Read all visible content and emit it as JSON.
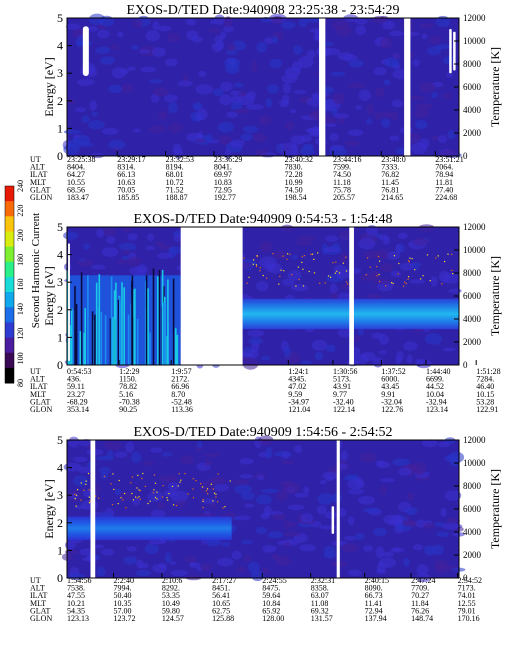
{
  "colorbar": {
    "label": "Second Harmonic Current",
    "ticks": [
      "80",
      "100",
      "120",
      "140",
      "160",
      "180",
      "200",
      "220",
      "240"
    ],
    "colors": [
      "#000000",
      "#3b0a55",
      "#4b1ea0",
      "#2f3cd2",
      "#1c6ee8",
      "#10a8ec",
      "#19dcd8",
      "#2af08a",
      "#7cf030",
      "#d8ec10",
      "#fbc40c",
      "#f96a08",
      "#e81a04"
    ]
  },
  "panels": [
    {
      "title": "EXOS-D/TED  Date:940908  23:25:38 - 23:54:29",
      "ylabel": "Energy [eV]",
      "y2label": "Temperature [K]",
      "yticks": [
        "0",
        "1",
        "2",
        "3",
        "4",
        "5"
      ],
      "y2ticks": [
        "0",
        "2000",
        "4000",
        "6000",
        "8000",
        "10000",
        "12000"
      ],
      "data_gaps": [
        [
          0.643,
          0.659
        ],
        [
          0.86,
          0.876
        ]
      ],
      "spikes": [
        [
          0.975,
          0.6,
          0.92
        ],
        [
          0.985,
          0.62,
          0.9
        ]
      ],
      "band": null,
      "left_bar": [
        0.02,
        0.58,
        0.94
      ],
      "cols": [
        {
          "fraction": 0.0,
          "UT": "23:25:38",
          "ALT": "8404.",
          "ILAT": "64.27",
          "MLT": "10.55",
          "GLAT": "68.56",
          "GLON": "183.47"
        },
        {
          "fraction": 0.135,
          "UT": "23:29:17",
          "ALT": "8314.",
          "ILAT": "66.13",
          "MLT": "10.63",
          "GLAT": "70.05",
          "GLON": "185.85"
        },
        {
          "fraction": 0.265,
          "UT": "23:32:53",
          "ALT": "8194.",
          "ILAT": "68.01",
          "MLT": "10.72",
          "GLAT": "71.52",
          "GLON": "188.87"
        },
        {
          "fraction": 0.395,
          "UT": "23:36:29",
          "ALT": "8041.",
          "ILAT": "69.97",
          "MLT": "10.83",
          "GLAT": "72.95",
          "GLON": "192.77"
        },
        {
          "fraction": 0.585,
          "UT": "23:40:32",
          "ALT": "7830.",
          "ILAT": "72.28",
          "MLT": "10.99",
          "GLAT": "74.50",
          "GLON": "198.54"
        },
        {
          "fraction": 0.715,
          "UT": "23:44:16",
          "ALT": "7599.",
          "ILAT": "74.50",
          "MLT": "11.18",
          "GLAT": "75.78",
          "GLON": "205.57"
        },
        {
          "fraction": 0.845,
          "UT": "23:48:0",
          "ALT": "7333.",
          "ILAT": "76.82",
          "MLT": "11.45",
          "GLAT": "76.81",
          "GLON": "214.65"
        },
        {
          "fraction": 0.99,
          "UT": "23:51:21",
          "ALT": "7064.",
          "ILAT": "78.94",
          "MLT": "11.81",
          "GLAT": "77.40",
          "GLON": "224.68"
        }
      ]
    },
    {
      "title": "EXOS-D/TED   Date:940909   0:54:53 - 1:54:48",
      "ylabel": "Energy [eV]",
      "y2label": "Temperature [K]",
      "yticks": [
        "0",
        "1",
        "2",
        "3",
        "4",
        "5"
      ],
      "y2ticks": [
        "0",
        "2000",
        "4000",
        "6000",
        "8000",
        "10000",
        "12000"
      ],
      "data_gaps": [
        [
          0.29,
          0.448
        ],
        [
          0.72,
          0.732
        ]
      ],
      "spikes": [],
      "band": {
        "from": 0.448,
        "to": 1.0,
        "center": 0.37,
        "height": 0.22
      },
      "left_bar": null,
      "cols": [
        {
          "fraction": 0.0,
          "UT": "0:54:53",
          "ALT": "436.",
          "ILAT": "59.11",
          "MLT": "23.27",
          "GLAT": "-68.29",
          "GLON": "353.14"
        },
        {
          "fraction": 0.14,
          "UT": "1:2:29",
          "ALT": "1150.",
          "ILAT": "78.82",
          "MLT": "5.16",
          "GLAT": "-70.38",
          "GLON": "90.25"
        },
        {
          "fraction": 0.28,
          "UT": "1:9:57",
          "ALT": "2172.",
          "ILAT": "66.96",
          "MLT": "8.70",
          "GLAT": "-52.48",
          "GLON": "113.36"
        },
        {
          "fraction": 0.595,
          "UT": "1:24:1",
          "ALT": "4345.",
          "ILAT": "47.02",
          "MLT": "9.59",
          "GLAT": "-34.97",
          "GLON": "121.04"
        },
        {
          "fraction": 0.715,
          "UT": "1:30:56",
          "ALT": "5173.",
          "ILAT": "43.91",
          "MLT": "9.77",
          "GLAT": "-32.40",
          "GLON": "122.14"
        },
        {
          "fraction": 0.845,
          "UT": "1:37:52",
          "ALT": "6000.",
          "ILAT": "43.45",
          "MLT": "9.91",
          "GLAT": "-32.04",
          "GLON": "122.76"
        },
        {
          "fraction": 0.965,
          "UT": "1:44:40",
          "ALT": "6699.",
          "ILAT": "44.52",
          "MLT": "10.04",
          "GLAT": "-32.94",
          "GLON": "123.14"
        },
        {
          "fraction": 1.1,
          "UT": "1:51:28",
          "ALT": "7284.",
          "ILAT": "46.40",
          "MLT": "10.15",
          "GLAT": "53.28",
          "GLON": "122.91"
        }
      ]
    },
    {
      "title": "EXOS-D/TED   Date:940909   1:54:56 - 2:54:52",
      "ylabel": "Energy [eV]",
      "y2label": "Temperature [K]",
      "yticks": [
        "0",
        "1",
        "2",
        "3",
        "4",
        "5"
      ],
      "y2ticks": [
        "0",
        "2000",
        "4000",
        "6000",
        "8000",
        "10000",
        "12000"
      ],
      "data_gaps": [
        [
          0.06,
          0.072
        ],
        [
          0.688,
          0.696
        ]
      ],
      "spikes": [
        [
          0.675,
          0.32,
          0.52
        ]
      ],
      "band": {
        "from": 0.0,
        "to": 0.42,
        "center": 0.36,
        "height": 0.17
      },
      "left_bar": null,
      "cols": [
        {
          "fraction": 0.0,
          "UT": "1:54:56",
          "ALT": "7538.",
          "ILAT": "47.55",
          "MLT": "10.21",
          "GLAT": "54.35",
          "GLON": "123.13"
        },
        {
          "fraction": 0.125,
          "UT": "2:2:40",
          "ALT": "7994.",
          "ILAT": "50.40",
          "MLT": "10.35",
          "GLAT": "57.00",
          "GLON": "123.72"
        },
        {
          "fraction": 0.255,
          "UT": "2:10:6",
          "ALT": "8292.",
          "ILAT": "53.35",
          "MLT": "10.49",
          "GLAT": "59.80",
          "GLON": "124.57"
        },
        {
          "fraction": 0.39,
          "UT": "2:17:27",
          "ALT": "8451.",
          "ILAT": "56.41",
          "MLT": "10.65",
          "GLAT": "62.75",
          "GLON": "125.88"
        },
        {
          "fraction": 0.525,
          "UT": "2:24:55",
          "ALT": "8475.",
          "ILAT": "59.64",
          "MLT": "10.84",
          "GLAT": "65.92",
          "GLON": "128.00"
        },
        {
          "fraction": 0.655,
          "UT": "2:32:31",
          "ALT": "8358.",
          "ILAT": "63.07",
          "MLT": "11.08",
          "GLAT": "69.32",
          "GLON": "131.57"
        },
        {
          "fraction": 0.8,
          "UT": "2:40:15",
          "ALT": "8090.",
          "ILAT": "66.73",
          "MLT": "11.41",
          "GLAT": "72.94",
          "GLON": "137.94"
        },
        {
          "fraction": 0.925,
          "UT": "2:47:24",
          "ALT": "7709.",
          "ILAT": "70.27",
          "MLT": "11.84",
          "GLAT": "76.26",
          "GLON": "148.74"
        },
        {
          "fraction": 1.05,
          "UT": "2:54:52",
          "ALT": "7173.",
          "ILAT": "74.01",
          "MLT": "12.55",
          "GLAT": "79.01",
          "GLON": "170.16"
        }
      ]
    }
  ],
  "row_labels": [
    "UT",
    "ALT",
    "ILAT",
    "MLT",
    "GLAT",
    "GLON"
  ],
  "chart_data": [
    {
      "type": "heatmap",
      "title": "EXOS-D/TED  Date:940908  23:25:38 - 23:54:29",
      "ylabel": "Energy [eV]",
      "y2label": "Temperature [K]",
      "ylim": [
        0,
        5
      ],
      "y2lim": [
        0,
        12000
      ],
      "x": [
        "23:25:38",
        "23:29:17",
        "23:32:53",
        "23:36:29",
        "23:40:32",
        "23:44:16",
        "23:48:0",
        "23:51:21"
      ],
      "grid": false
    },
    {
      "type": "heatmap",
      "title": "EXOS-D/TED   Date:940909   0:54:53 - 1:54:48",
      "ylabel": "Energy [eV]",
      "y2label": "Temperature [K]",
      "ylim": [
        0,
        5
      ],
      "y2lim": [
        0,
        12000
      ],
      "colorbar_label": "Second Harmonic Current",
      "colorbar_range": [
        80,
        240
      ],
      "x": [
        "0:54:53",
        "1:2:29",
        "1:9:57",
        "1:24:1",
        "1:30:56",
        "1:37:52",
        "1:44:40",
        "1:51:28"
      ],
      "grid": false
    },
    {
      "type": "heatmap",
      "title": "EXOS-D/TED   Date:940909   1:54:56 - 2:54:52",
      "ylabel": "Energy [eV]",
      "y2label": "Temperature [K]",
      "ylim": [
        0,
        5
      ],
      "y2lim": [
        0,
        12000
      ],
      "x": [
        "1:54:56",
        "2:2:40",
        "2:10:6",
        "2:17:27",
        "2:24:55",
        "2:32:31",
        "2:40:15",
        "2:47:24",
        "2:54:52"
      ],
      "grid": false
    }
  ]
}
